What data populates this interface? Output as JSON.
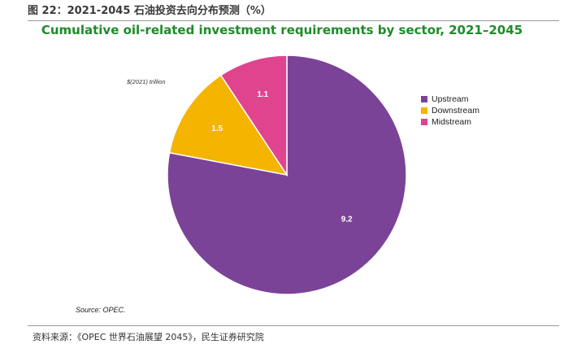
{
  "figure_caption": "图 22：2021-2045 石油投资去向分布预测（%）",
  "footer_source": "资料来源：《OPEC 世界石油展望 2045》，民生证券研究院",
  "chart_data": {
    "type": "pie",
    "title": "Cumulative oil-related investment requirements by sector, 2021–2045",
    "unit_label": "$(2021) trillion",
    "source_note": "Source: OPEC.",
    "legend_position": "right",
    "slices": [
      {
        "name": "Upstream",
        "value": 9.2,
        "color": "#7b4397"
      },
      {
        "name": "Downstream",
        "value": 1.5,
        "color": "#f5b400"
      },
      {
        "name": "Midstream",
        "value": 1.1,
        "color": "#e0448f"
      }
    ]
  }
}
